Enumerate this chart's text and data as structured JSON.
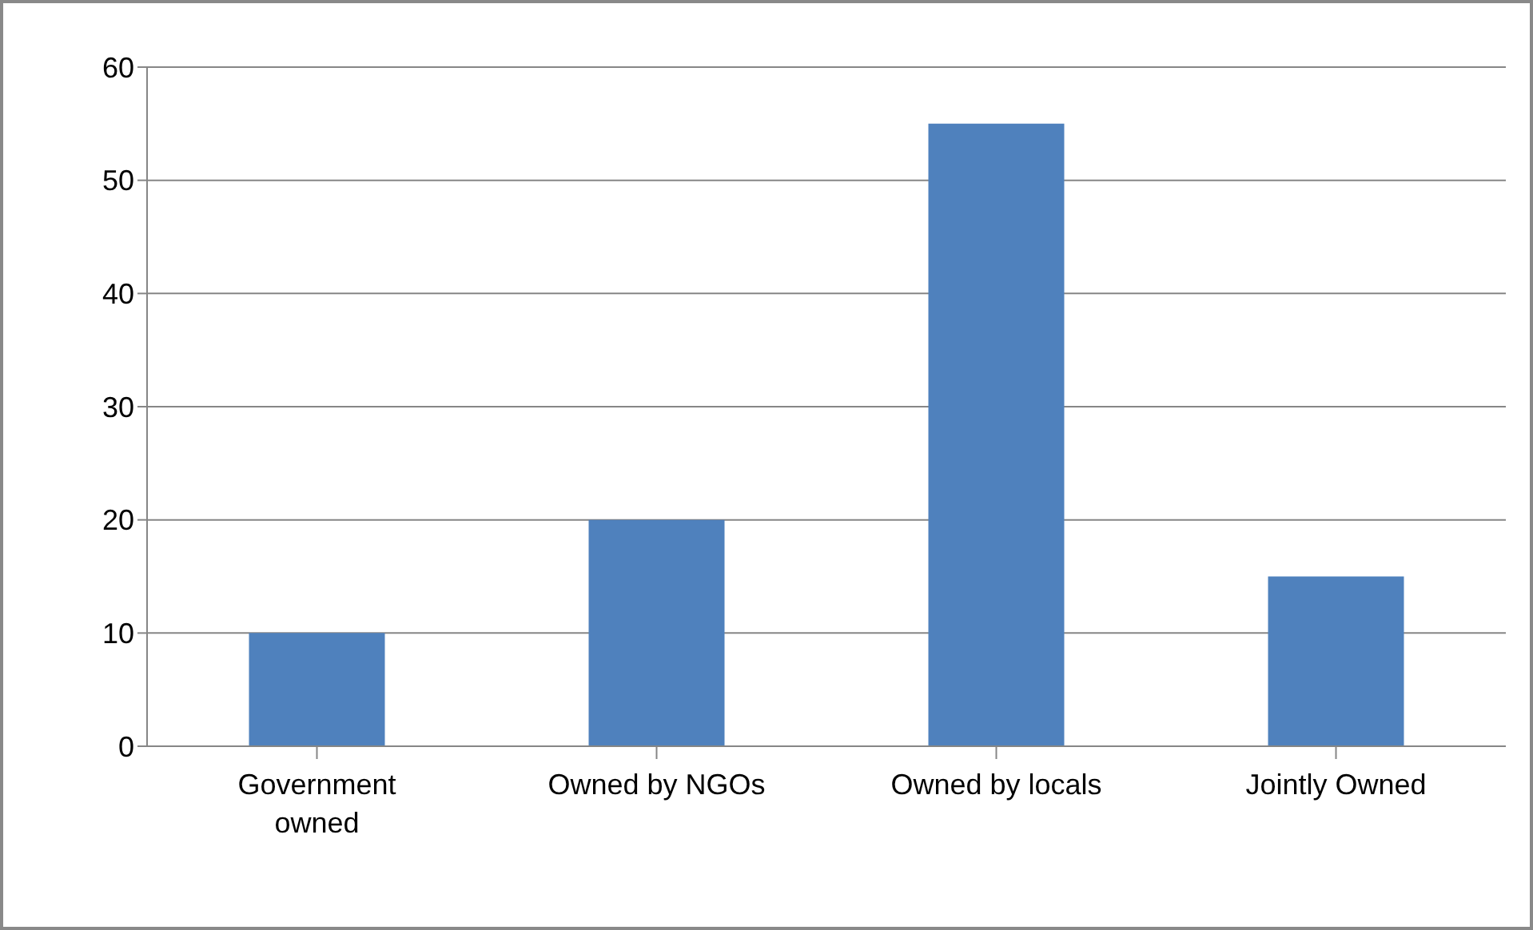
{
  "chart_data": {
    "type": "bar",
    "categories": [
      "Government owned",
      "Owned by NGOs",
      "Owned by locals",
      "Jointly Owned"
    ],
    "values": [
      10,
      20,
      55,
      15
    ],
    "color": "#4f81bd",
    "ylim": [
      0,
      60
    ],
    "yticks": [
      0,
      10,
      20,
      30,
      40,
      50,
      60
    ],
    "grid": "y"
  }
}
